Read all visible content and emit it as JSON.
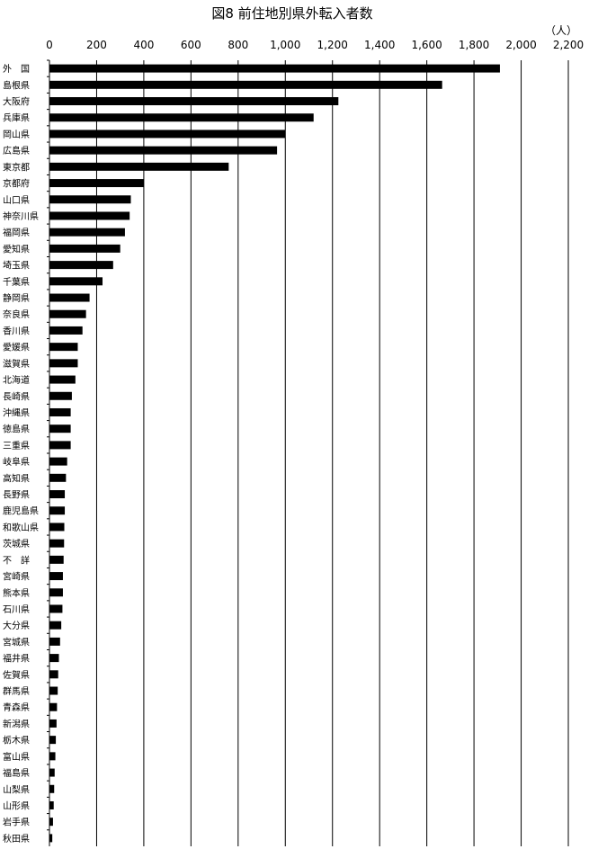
{
  "chart_data": {
    "type": "bar",
    "orientation": "horizontal",
    "title": "図8  前住地別県外転入者数",
    "unit": "（人）",
    "xlim": [
      0,
      2200
    ],
    "ticks": [
      0,
      200,
      400,
      600,
      800,
      1000,
      1200,
      1400,
      1600,
      1800,
      2000,
      2200
    ],
    "tick_labels": [
      "0",
      "200",
      "400",
      "600",
      "800",
      "1,000",
      "1,200",
      "1,400",
      "1,600",
      "1,800",
      "2,000",
      "2,200"
    ],
    "grid": true,
    "categories": [
      "外　国",
      "島根県",
      "大阪府",
      "兵庫県",
      "岡山県",
      "広島県",
      "東京都",
      "京都府",
      "山口県",
      "神奈川県",
      "福岡県",
      "愛知県",
      "埼玉県",
      "千葉県",
      "静岡県",
      "奈良県",
      "香川県",
      "愛媛県",
      "滋賀県",
      "北海道",
      "長崎県",
      "沖縄県",
      "徳島県",
      "三重県",
      "岐阜県",
      "高知県",
      "長野県",
      "鹿児島県",
      "和歌山県",
      "茨城県",
      "不　詳",
      "宮崎県",
      "熊本県",
      "石川県",
      "大分県",
      "宮城県",
      "福井県",
      "佐賀県",
      "群馬県",
      "青森県",
      "新潟県",
      "栃木県",
      "富山県",
      "福島県",
      "山梨県",
      "山形県",
      "岩手県",
      "秋田県"
    ],
    "values": [
      1910,
      1665,
      1225,
      1120,
      1000,
      965,
      760,
      400,
      345,
      340,
      320,
      300,
      270,
      225,
      170,
      155,
      140,
      120,
      120,
      110,
      95,
      90,
      90,
      90,
      75,
      70,
      65,
      65,
      63,
      62,
      60,
      57,
      57,
      55,
      50,
      45,
      40,
      37,
      35,
      32,
      30,
      27,
      25,
      22,
      20,
      18,
      15,
      12
    ]
  }
}
